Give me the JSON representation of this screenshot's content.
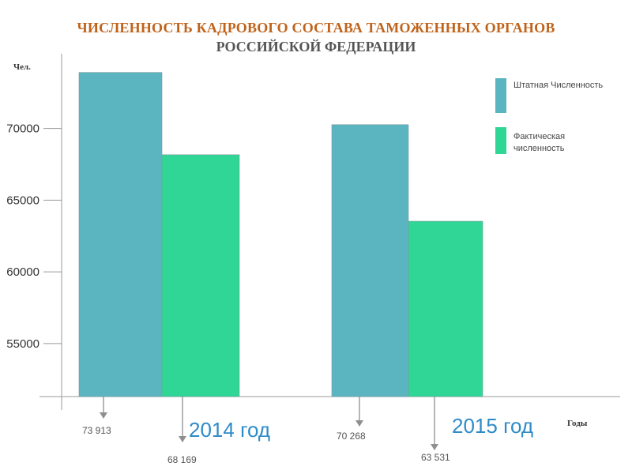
{
  "title_line1": "ЧИСЛЕННОСТЬ КАДРОВОГО СОСТАВА ТАМОЖЕННЫХ ОРГАНОВ",
  "title_line2": "РОССИЙСКОЙ ФЕДЕРАЦИИ",
  "colors": {
    "title": "#c0631a",
    "subtitle": "#555555",
    "series1": "#5bb5c1",
    "series2": "#2fd695",
    "axis": "#999999",
    "year_label": "#2e8bc8"
  },
  "chart_data": {
    "type": "bar",
    "title": "ЧИСЛЕННОСТЬ КАДРОВОГО СОСТАВА ТАМОЖЕННЫХ ОРГАНОВ РОССИЙСКОЙ ФЕДЕРАЦИИ",
    "ylabel": "Чел.",
    "xlabel": "Годы",
    "categories": [
      "2014 год",
      "2015 год"
    ],
    "series": [
      {
        "name": "Штатная Численность",
        "values": [
          73913,
          70268
        ],
        "labels": [
          "73 913",
          "70 268"
        ]
      },
      {
        "name": "Фактическая численность",
        "values": [
          68169,
          63531
        ],
        "labels": [
          "68 169",
          "63 531"
        ]
      }
    ],
    "ylim": [
      51300,
      74500
    ],
    "yticks": [
      55000,
      60000,
      65000,
      70000
    ],
    "grid": false,
    "legend_position": "top-right"
  }
}
